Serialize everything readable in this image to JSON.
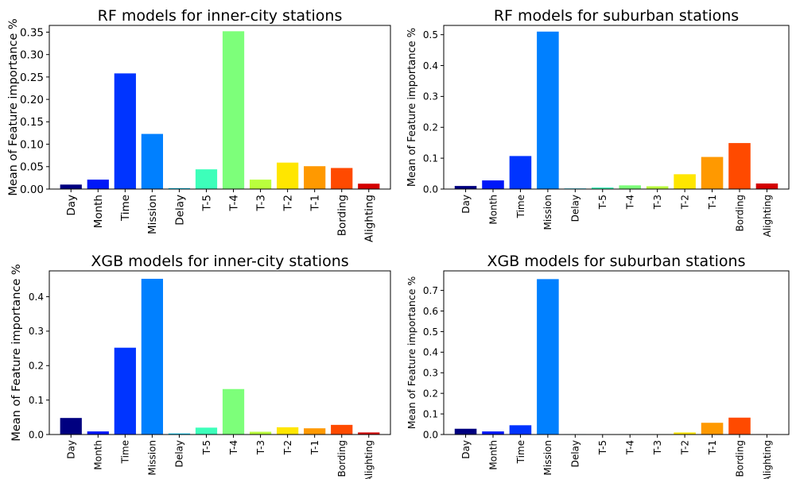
{
  "chart_data": [
    {
      "type": "bar",
      "title": "RF models for inner-city stations",
      "ylabel": "Mean of Feature importance %",
      "xlabel": "",
      "categories": [
        "Day",
        "Month",
        "Time",
        "Mission",
        "Delay",
        "T-5",
        "T-4",
        "T-3",
        "T-2",
        "T-1",
        "Bording",
        "Alighting"
      ],
      "values": [
        0.01,
        0.021,
        0.258,
        0.123,
        0.002,
        0.044,
        0.352,
        0.021,
        0.059,
        0.051,
        0.047,
        0.012
      ],
      "colors": [
        "#000080",
        "#0018f8",
        "#0034ff",
        "#0080ff",
        "#00d4ff",
        "#3dffba",
        "#7dff7a",
        "#baff3d",
        "#ffe600",
        "#ff9900",
        "#ff4a00",
        "#d40000"
      ],
      "ylim": [
        0,
        0.365
      ],
      "yticks": [
        0.0,
        0.05,
        0.1,
        0.15,
        0.2,
        0.25,
        0.3,
        0.35
      ],
      "ytick_labels": [
        "0.00",
        "0.05",
        "0.10",
        "0.15",
        "0.20",
        "0.25",
        "0.30",
        "0.35"
      ],
      "grid": false,
      "legend": "none"
    },
    {
      "type": "bar",
      "title": "RF models for suburban stations",
      "ylabel": "Mean of Feature importance %",
      "xlabel": "",
      "categories": [
        "Day",
        "Month",
        "Time",
        "Mission",
        "Delay",
        "T-5",
        "T-4",
        "T-3",
        "T-2",
        "T-1",
        "Bording",
        "Alighting"
      ],
      "values": [
        0.01,
        0.028,
        0.107,
        0.51,
        0.002,
        0.005,
        0.012,
        0.009,
        0.048,
        0.104,
        0.149,
        0.018
      ],
      "colors": [
        "#000080",
        "#0018f8",
        "#0034ff",
        "#0080ff",
        "#00d4ff",
        "#3dffba",
        "#7dff7a",
        "#baff3d",
        "#ffe600",
        "#ff9900",
        "#ff4a00",
        "#d40000"
      ],
      "ylim": [
        0,
        0.53
      ],
      "yticks": [
        0.0,
        0.1,
        0.2,
        0.3,
        0.4,
        0.5
      ],
      "ytick_labels": [
        "0.0",
        "0.1",
        "0.2",
        "0.3",
        "0.4",
        "0.5"
      ],
      "grid": false,
      "legend": "none"
    },
    {
      "type": "bar",
      "title": "XGB models for inner-city stations",
      "ylabel": "Mean of Feature importance %",
      "xlabel": "",
      "categories": [
        "Day",
        "Month",
        "Time",
        "Mission",
        "Delay",
        "T-5",
        "T-4",
        "T-3",
        "T-2",
        "T-1",
        "Bording",
        "Alighting"
      ],
      "values": [
        0.048,
        0.009,
        0.252,
        0.452,
        0.003,
        0.02,
        0.132,
        0.008,
        0.021,
        0.018,
        0.028,
        0.006
      ],
      "colors": [
        "#000080",
        "#0018f8",
        "#0034ff",
        "#0080ff",
        "#00d4ff",
        "#3dffba",
        "#7dff7a",
        "#baff3d",
        "#ffe600",
        "#ff9900",
        "#ff4a00",
        "#d40000"
      ],
      "ylim": [
        0,
        0.475
      ],
      "yticks": [
        0.0,
        0.1,
        0.2,
        0.3,
        0.4
      ],
      "ytick_labels": [
        "0.0",
        "0.1",
        "0.2",
        "0.3",
        "0.4"
      ],
      "grid": false,
      "legend": "none"
    },
    {
      "type": "bar",
      "title": "XGB models for suburban stations",
      "ylabel": "Mean of Feature importance %",
      "xlabel": "",
      "categories": [
        "Day",
        "Month",
        "Time",
        "Mission",
        "Delay",
        "T-5",
        "T-4",
        "T-3",
        "T-2",
        "T-1",
        "Bording",
        "Alighting"
      ],
      "values": [
        0.028,
        0.015,
        0.045,
        0.755,
        0.002,
        0.001,
        0.002,
        0.002,
        0.01,
        0.057,
        0.082,
        0.002
      ],
      "colors": [
        "#000080",
        "#0018f8",
        "#0034ff",
        "#0080ff",
        "#00d4ff",
        "#3dffba",
        "#7dff7a",
        "#baff3d",
        "#ffe600",
        "#ff9900",
        "#ff4a00",
        "#d40000"
      ],
      "ylim": [
        0,
        0.795
      ],
      "yticks": [
        0.0,
        0.1,
        0.2,
        0.3,
        0.4,
        0.5,
        0.6,
        0.7
      ],
      "ytick_labels": [
        "0.0",
        "0.1",
        "0.2",
        "0.3",
        "0.4",
        "0.5",
        "0.6",
        "0.7"
      ],
      "grid": false,
      "legend": "none"
    }
  ]
}
